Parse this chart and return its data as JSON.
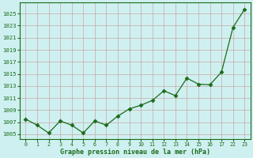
{
  "x_indices": [
    0,
    1,
    2,
    3,
    4,
    5,
    6,
    7,
    8,
    9,
    10,
    11,
    12,
    13,
    14,
    15,
    16,
    17,
    18,
    19
  ],
  "y": [
    1007.5,
    1006.5,
    1005.2,
    1007.2,
    1006.5,
    1005.2,
    1007.2,
    1006.5,
    1008.0,
    1009.2,
    1009.8,
    1010.6,
    1012.2,
    1011.4,
    1014.3,
    1013.3,
    1013.2,
    1015.3,
    1022.7,
    1025.7
  ],
  "line_color": "#1a6b1a",
  "marker": "D",
  "marker_size": 2.5,
  "bg_color": "#cff0f0",
  "grid_color": "#c8a8a8",
  "title": "Graphe pression niveau de la mer (hPa)",
  "xtick_positions": [
    0,
    1,
    2,
    3,
    4,
    5,
    6,
    7,
    8,
    9,
    10,
    11,
    12,
    13,
    14,
    15,
    16,
    17,
    18,
    19
  ],
  "xtick_labels": [
    "0",
    "1",
    "2",
    "3",
    "4",
    "5",
    "6",
    "7",
    "8",
    "9",
    "10",
    "11",
    "12",
    "13",
    "14",
    "15",
    "16",
    "17",
    "22",
    "23"
  ],
  "ytick_values": [
    1005,
    1007,
    1009,
    1011,
    1013,
    1015,
    1017,
    1019,
    1021,
    1023,
    1025
  ],
  "ylim": [
    1004.2,
    1026.8
  ],
  "xlim": [
    -0.5,
    19.5
  ]
}
